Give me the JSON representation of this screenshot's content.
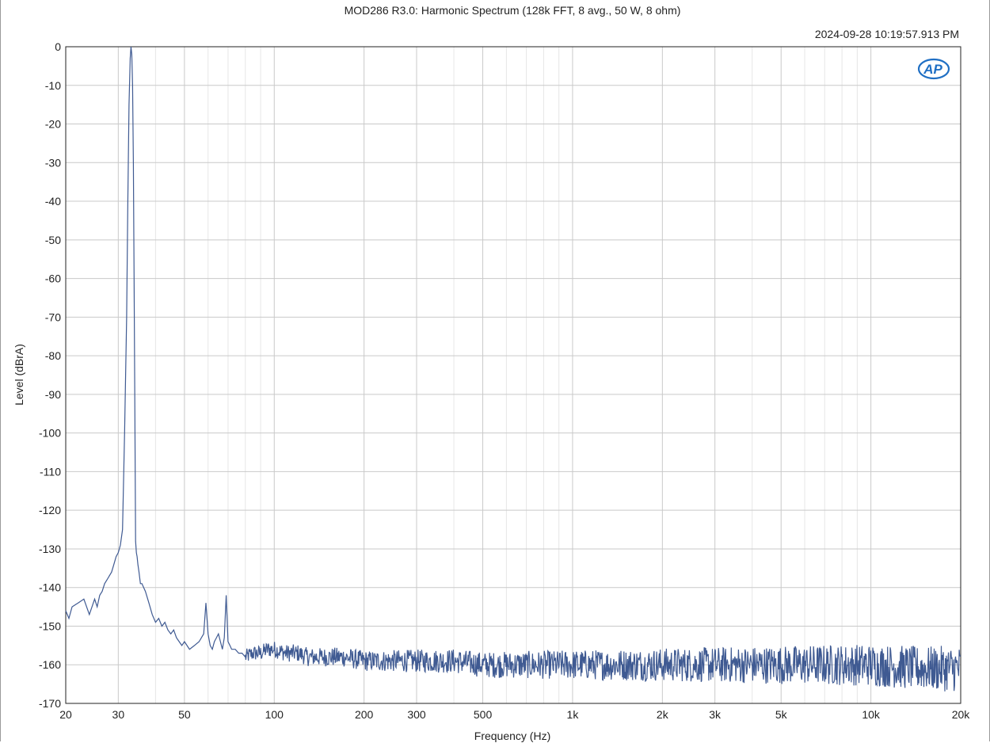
{
  "chart_data": {
    "type": "line",
    "title": "MOD286 R3.0: Harmonic Spectrum (128k FFT, 8 avg., 50 W, 8 ohm)",
    "timestamp": "2024-09-28 10:19:57.913 PM",
    "logo": "AP",
    "xlabel": "Frequency (Hz)",
    "ylabel": "Level (dBrA)",
    "x_scale": "log",
    "xlim": [
      20,
      20000
    ],
    "ylim": [
      -170,
      0
    ],
    "x_ticks": [
      {
        "value": 20,
        "label": "20"
      },
      {
        "value": 30,
        "label": "30"
      },
      {
        "value": 50,
        "label": "50"
      },
      {
        "value": 100,
        "label": "100"
      },
      {
        "value": 200,
        "label": "200"
      },
      {
        "value": 300,
        "label": "300"
      },
      {
        "value": 500,
        "label": "500"
      },
      {
        "value": 1000,
        "label": "1k"
      },
      {
        "value": 2000,
        "label": "2k"
      },
      {
        "value": 3000,
        "label": "3k"
      },
      {
        "value": 5000,
        "label": "5k"
      },
      {
        "value": 10000,
        "label": "10k"
      },
      {
        "value": 20000,
        "label": "20k"
      }
    ],
    "y_ticks": [
      {
        "value": 0,
        "label": "0"
      },
      {
        "value": -10,
        "label": "-10"
      },
      {
        "value": -20,
        "label": "-20"
      },
      {
        "value": -30,
        "label": "-30"
      },
      {
        "value": -40,
        "label": "-40"
      },
      {
        "value": -50,
        "label": "-50"
      },
      {
        "value": -60,
        "label": "-60"
      },
      {
        "value": -70,
        "label": "-70"
      },
      {
        "value": -80,
        "label": "-80"
      },
      {
        "value": -90,
        "label": "-90"
      },
      {
        "value": -100,
        "label": "-100"
      },
      {
        "value": -110,
        "label": "-110"
      },
      {
        "value": -120,
        "label": "-120"
      },
      {
        "value": -130,
        "label": "-130"
      },
      {
        "value": -140,
        "label": "-140"
      },
      {
        "value": -150,
        "label": "-150"
      },
      {
        "value": -160,
        "label": "-160"
      },
      {
        "value": -170,
        "label": "-170"
      }
    ],
    "grid": true,
    "series_color": "#3f5a92",
    "grid_major_color": "#c9c9c9",
    "grid_minor_color": "#e6e6e6",
    "logo_color": "#1f6fc4",
    "series": [
      {
        "x": [
          20,
          20.5,
          21,
          22,
          23,
          24,
          25,
          25.5,
          26,
          26.5,
          27,
          27.5,
          28,
          28.5,
          29,
          29.5,
          30,
          30.5,
          31,
          31.5,
          32,
          32.3,
          32.6,
          32.9,
          33.1,
          33.3,
          33.5,
          33.7,
          33.9,
          34.1,
          34.3,
          34.5,
          34.7,
          34.9,
          35.2,
          35.6,
          36,
          36.5,
          37,
          38,
          39,
          40,
          41,
          42,
          43,
          44,
          45,
          46,
          47,
          48,
          49,
          50,
          52,
          54,
          56,
          58,
          59,
          60,
          61,
          62,
          63,
          64,
          65,
          66,
          67,
          68,
          69,
          70,
          71,
          72,
          74,
          76,
          78,
          80,
          85,
          90,
          95,
          100,
          110,
          120,
          130,
          140,
          150,
          170,
          200,
          250,
          300,
          400,
          500,
          700,
          1000,
          1500,
          2000,
          3000,
          5000,
          7000,
          10000,
          15000,
          20000
        ],
        "y": [
          -146,
          -148,
          -145,
          -144,
          -143,
          -147,
          -143,
          -145,
          -142,
          -141,
          -139,
          -138,
          -137,
          -136,
          -134,
          -132,
          -131,
          -129,
          -125,
          -100,
          -70,
          -40,
          -15,
          -3,
          0,
          -2,
          -10,
          -30,
          -60,
          -95,
          -128,
          -131,
          -132,
          -134,
          -136,
          -139,
          -139,
          -140,
          -141,
          -144,
          -147,
          -149,
          -148,
          -150,
          -149,
          -151,
          -152,
          -151,
          -153,
          -154,
          -155,
          -154,
          -156,
          -155,
          -154,
          -152,
          -144,
          -152,
          -155,
          -156,
          -154,
          -153,
          -152,
          -154,
          -156,
          -153,
          -142,
          -154,
          -155,
          -156,
          -156,
          -157,
          -157,
          -158,
          -157,
          -157,
          -156,
          -156,
          -157,
          -157,
          -158,
          -158,
          -158,
          -158,
          -159,
          -159,
          -159,
          -159,
          -160,
          -160,
          -160,
          -160,
          -160,
          -160,
          -160,
          -160,
          -160,
          -161,
          -161
        ]
      }
    ]
  }
}
